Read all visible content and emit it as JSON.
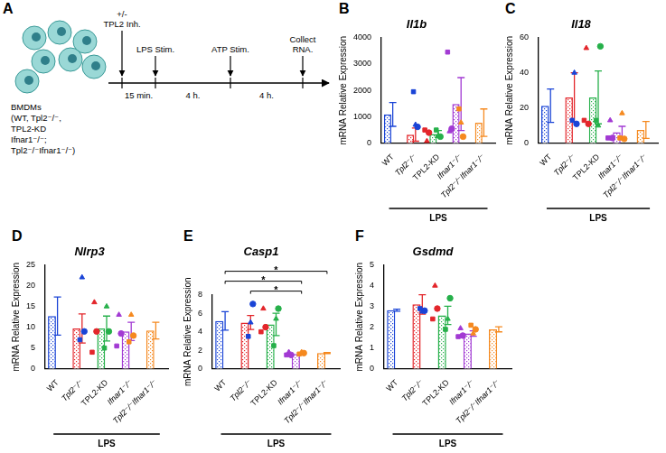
{
  "diagram": {
    "panel": "A",
    "cells_label": [
      "BMDMs",
      "(WT, Tpl2⁻/⁻,",
      "TPL2-KD",
      "Ifnar1⁻/⁻;",
      "Tpl2⁻/⁻Ifnar1⁻/⁻)"
    ],
    "steps": [
      [
        "+/-",
        "TPL2 Inh."
      ],
      [
        "LPS Stim."
      ],
      [
        "ATP Stim."
      ],
      [
        "Collect",
        "RNA."
      ]
    ],
    "intervals": [
      "15 min.",
      "4 h.",
      "4 h."
    ]
  },
  "chart_data": [
    {
      "type": "bar",
      "panel": "B",
      "title": "Il1b",
      "y_label": "mRNA Relative Expression",
      "x_group_label": "LPS",
      "categories": [
        "WT",
        "Tpl2⁻/⁻",
        "TPL2-KD",
        "Ifnar1⁻/⁻",
        "Tpl2⁻/⁻Ifnar1⁻/⁻"
      ],
      "values": [
        1090,
        327,
        350,
        1483,
        777
      ],
      "errors": [
        450,
        250,
        130,
        1000,
        520
      ],
      "replicates": [
        [
          1950,
          700,
          620
        ],
        [
          500,
          80,
          400
        ],
        [
          500,
          300,
          250
        ],
        [
          3450,
          450,
          550
        ],
        [
          1300,
          780,
          250
        ]
      ],
      "colors": [
        "#1a44d6",
        "#e3262b",
        "#26b04a",
        "#a23ad3",
        "#f5891f"
      ],
      "ylim": [
        0,
        4000
      ],
      "yticks": [
        0,
        1000,
        2000,
        3000,
        4000
      ]
    },
    {
      "type": "bar",
      "panel": "C",
      "title": "Il18",
      "y_label": "mRNA Relative Expression",
      "x_group_label": "LPS",
      "categories": [
        "WT",
        "Tpl2⁻/⁻",
        "TPL2-KD",
        "Ifnar1⁻/⁻",
        "Tpl2⁻/⁻Ifnar1⁻/⁻"
      ],
      "values": [
        21.3,
        26,
        26,
        6.3,
        7.5
      ],
      "errors": [
        9.5,
        14,
        15,
        3.3,
        4.8
      ],
      "replicates": [
        [
          13,
          40,
          11
        ],
        [
          13,
          54,
          11
        ],
        [
          13,
          10,
          55
        ],
        [
          3,
          13,
          3
        ],
        [
          3,
          17,
          2.5
        ]
      ],
      "colors": [
        "#1a44d6",
        "#e3262b",
        "#26b04a",
        "#a23ad3",
        "#f5891f"
      ],
      "ylim": [
        0,
        60
      ],
      "yticks": [
        0,
        20,
        40,
        60
      ]
    },
    {
      "type": "bar",
      "panel": "D",
      "title": "Nlrp3",
      "y_label": "mRNA Relative Expression",
      "x_group_label": "LPS",
      "categories": [
        "WT",
        "Tpl2⁻/⁻",
        "TPL2-KD",
        "Ifnar1⁻/⁻",
        "Tpl2⁻/⁻Ifnar1⁻/⁻"
      ],
      "values": [
        12.7,
        9.7,
        9.7,
        9,
        9.2
      ],
      "errors": [
        4.6,
        3.5,
        3,
        2.2,
        2
      ],
      "replicates": [
        [
          7,
          22,
          9
        ],
        [
          4,
          16,
          9
        ],
        [
          5,
          15,
          9
        ],
        [
          5.5,
          13,
          8.5
        ],
        [
          6.5,
          13,
          8
        ]
      ],
      "colors": [
        "#1a44d6",
        "#e3262b",
        "#26b04a",
        "#a23ad3",
        "#f5891f"
      ],
      "ylim": [
        0,
        25
      ],
      "yticks": [
        0,
        5,
        10,
        15,
        20,
        25
      ]
    },
    {
      "type": "bar",
      "panel": "E",
      "title": "Casp1",
      "y_label": "mRNA Relative Expression",
      "x_group_label": "LPS",
      "categories": [
        "WT",
        "Tpl2⁻/⁻",
        "TPL2-KD",
        "Ifnar1⁻/⁻",
        "Tpl2⁻/⁻Ifnar1⁻/⁻"
      ],
      "values": [
        5.17,
        5,
        4.8,
        1.6,
        1.7
      ],
      "errors": [
        1,
        0.75,
        1.2,
        0.1,
        0.06
      ],
      "replicates": [
        [
          3.5,
          5,
          7
        ],
        [
          4,
          6.5,
          4.5
        ],
        [
          2.5,
          5.4,
          6.5
        ],
        [
          1.5,
          1.8,
          1.5
        ],
        [
          1.6,
          1.8,
          1.7
        ]
      ],
      "colors": [
        "#1a44d6",
        "#e3262b",
        "#26b04a",
        "#a23ad3",
        "#f5891f"
      ],
      "ylim": [
        0,
        8
      ],
      "yticks": [
        0,
        2,
        4,
        6,
        8
      ],
      "significance": [
        {
          "from": "Tpl2⁻/⁻",
          "to": "Ifnar1⁻/⁻",
          "label": "*"
        },
        {
          "from": "WT",
          "to": "Ifnar1⁻/⁻",
          "label": "*"
        },
        {
          "from": "WT",
          "to": "Tpl2⁻/⁻Ifnar1⁻/⁻",
          "label": "*"
        }
      ]
    },
    {
      "type": "bar",
      "panel": "F",
      "title": "Gsdmd",
      "y_label": "mRNA Relative Expression",
      "x_group_label": "LPS",
      "categories": [
        "WT",
        "Tpl2⁻/⁻",
        "TPL2-KD",
        "Ifnar1⁻/⁻",
        "Tpl2⁻/⁻Ifnar1⁻/⁻"
      ],
      "values": [
        2.82,
        3.1,
        2.57,
        1.7,
        1.9
      ],
      "errors": [
        0.05,
        0.47,
        0.44,
        0.13,
        0.12
      ],
      "replicates": [
        [
          2.9,
          2.75,
          2.8
        ],
        [
          2.4,
          4,
          2.9
        ],
        [
          1.9,
          2.4,
          3.4
        ],
        [
          1.55,
          1.95,
          1.6
        ],
        [
          2.1,
          1.7,
          1.9
        ]
      ],
      "colors": [
        "#1a44d6",
        "#e3262b",
        "#26b04a",
        "#a23ad3",
        "#f5891f"
      ],
      "ylim": [
        0,
        5
      ],
      "yticks": [
        0,
        1,
        2,
        3,
        4,
        5
      ]
    }
  ]
}
